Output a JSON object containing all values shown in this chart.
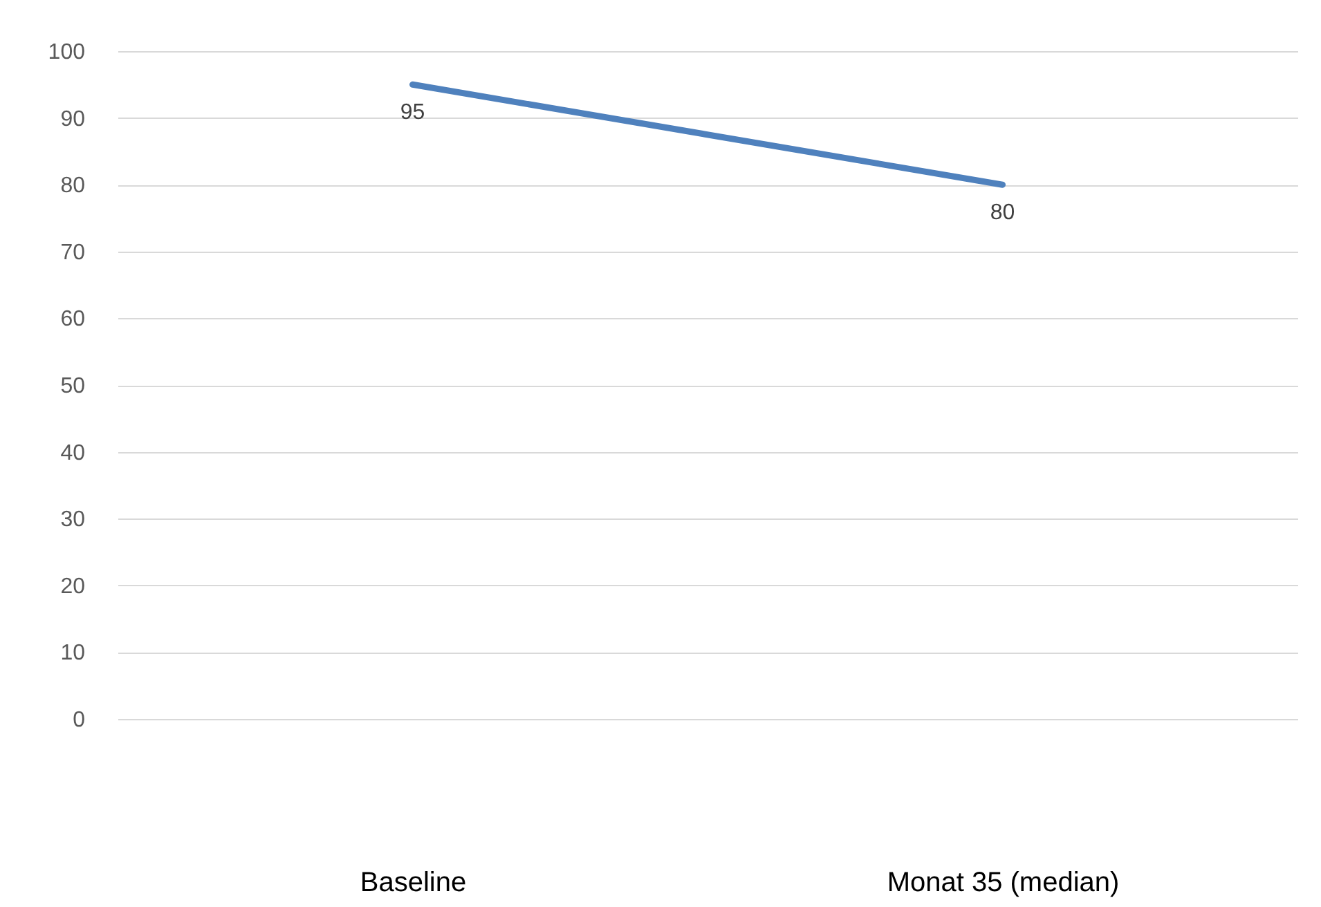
{
  "chart_data": {
    "type": "line",
    "categories": [
      "Baseline",
      "Monat 35 (median)"
    ],
    "series": [
      {
        "color": "#4f81bd",
        "values": [
          95,
          80
        ]
      }
    ],
    "ylim": [
      0,
      100
    ],
    "yticks": [
      0,
      10,
      20,
      30,
      40,
      50,
      60,
      70,
      80,
      90,
      100
    ],
    "grid": "y",
    "legend": false,
    "data_labels": true,
    "marker": "none"
  }
}
